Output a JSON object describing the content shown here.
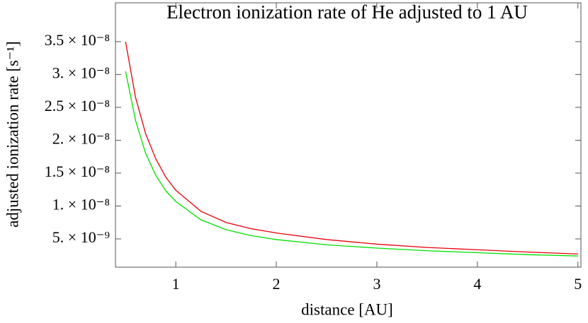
{
  "chart_data": {
    "type": "line",
    "title": "Electron ionization rate of He adjusted to 1 AU",
    "x_label": "distance [AU]",
    "y_label": "adjusted ionization rate [s⁻¹]",
    "x": [
      0.5,
      0.6,
      0.7,
      0.8,
      0.9,
      1,
      1.25,
      1.5,
      1.75,
      2,
      2.5,
      3,
      3.5,
      4,
      4.5,
      5
    ],
    "series": [
      {
        "color": "#e8000b",
        "values": [
          3.5e-08,
          2.65e-08,
          2.1e-08,
          1.72e-08,
          1.44e-08,
          1.24e-08,
          9.2e-09,
          7.5e-09,
          6.55e-09,
          5.9e-09,
          4.9e-09,
          4.2e-09,
          3.7e-09,
          3.35e-09,
          3e-09,
          2.7e-09
        ]
      },
      {
        "color": "#00e000",
        "values": [
          3.05e-08,
          2.3e-08,
          1.8e-08,
          1.47e-08,
          1.23e-08,
          1.07e-08,
          7.9e-09,
          6.4e-09,
          5.5e-09,
          4.9e-09,
          4.1e-09,
          3.6e-09,
          3.2e-09,
          2.9e-09,
          2.6e-09,
          2.4e-09
        ]
      }
    ],
    "xlim": [
      0.4,
      5.03
    ],
    "ylim": [
      7e-10,
      4.09e-08
    ],
    "xticks": [
      1,
      2,
      3,
      4,
      5
    ],
    "yticks": [
      {
        "value": 5e-09,
        "label": "5. × 10⁻⁹"
      },
      {
        "value": 1e-08,
        "label": "1. × 10⁻⁸"
      },
      {
        "value": 1.5e-08,
        "label": "1.5 × 10⁻⁸"
      },
      {
        "value": 2e-08,
        "label": "2. × 10⁻⁸"
      },
      {
        "value": 2.5e-08,
        "label": "2.5 × 10⁻⁸"
      },
      {
        "value": 3e-08,
        "label": "3. × 10⁻⁸"
      },
      {
        "value": 3.5e-08,
        "label": "3.5 × 10⁻⁸"
      }
    ],
    "grid": false
  }
}
